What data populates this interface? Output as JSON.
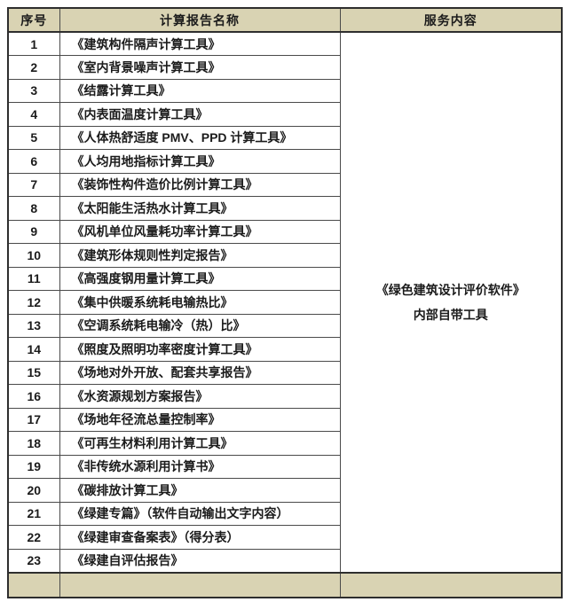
{
  "table": {
    "headers": [
      "序号",
      "计算报告名称",
      "服务内容"
    ],
    "rows": [
      {
        "no": "1",
        "name": "《建筑构件隔声计算工具》"
      },
      {
        "no": "2",
        "name": "《室内背景噪声计算工具》"
      },
      {
        "no": "3",
        "name": "《结露计算工具》"
      },
      {
        "no": "4",
        "name": "《内表面温度计算工具》"
      },
      {
        "no": "5",
        "name": "《人体热舒适度 PMV、PPD 计算工具》"
      },
      {
        "no": "6",
        "name": "《人均用地指标计算工具》"
      },
      {
        "no": "7",
        "name": "《装饰性构件造价比例计算工具》"
      },
      {
        "no": "8",
        "name": "《太阳能生活热水计算工具》"
      },
      {
        "no": "9",
        "name": "《风机单位风量耗功率计算工具》"
      },
      {
        "no": "10",
        "name": "《建筑形体规则性判定报告》"
      },
      {
        "no": "11",
        "name": "《高强度钢用量计算工具》"
      },
      {
        "no": "12",
        "name": "《集中供暖系统耗电输热比》"
      },
      {
        "no": "13",
        "name": "《空调系统耗电输冷（热）比》"
      },
      {
        "no": "14",
        "name": "《照度及照明功率密度计算工具》"
      },
      {
        "no": "15",
        "name": "《场地对外开放、配套共享报告》"
      },
      {
        "no": "16",
        "name": "《水资源规划方案报告》"
      },
      {
        "no": "17",
        "name": "《场地年径流总量控制率》"
      },
      {
        "no": "18",
        "name": "《可再生材料利用计算工具》"
      },
      {
        "no": "19",
        "name": "《非传统水源利用计算书》"
      },
      {
        "no": "20",
        "name": "《碳排放计算工具》"
      },
      {
        "no": "21",
        "name": "《绿建专篇》（软件自动输出文字内容）"
      },
      {
        "no": "22",
        "name": "《绿建审查备案表》（得分表）"
      },
      {
        "no": "23",
        "name": "《绿建自评估报告》"
      }
    ],
    "service": {
      "line1": "《绿色建筑设计评价软件》",
      "line2": "内部自带工具"
    }
  },
  "colors": {
    "header_bg": "#d9d3b3",
    "outer_border": "#2e2e2e",
    "inner_border": "#4a4a4a",
    "text": "#1b1b1b",
    "page_bg": "#ffffff"
  }
}
